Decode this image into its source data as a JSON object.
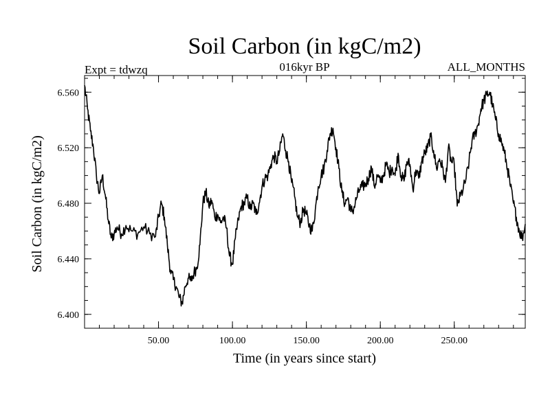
{
  "chart_data": {
    "type": "line",
    "title": "Soil Carbon (in kgC/m2)",
    "subtitle_left": "Expt = tdwzq",
    "subtitle_center": "016kyr BP",
    "subtitle_right": "ALL_MONTHS",
    "xlabel": "Time (in years since start)",
    "ylabel": "Soil Carbon (in kgC/m2)",
    "xlim": [
      0,
      298
    ],
    "ylim": [
      6.39,
      6.572
    ],
    "x_ticks": [
      50,
      100,
      150,
      200,
      250
    ],
    "x_tick_labels": [
      "50.00",
      "100.00",
      "150.00",
      "200.00",
      "250.00"
    ],
    "y_ticks": [
      6.4,
      6.44,
      6.48,
      6.52,
      6.56
    ],
    "y_tick_labels": [
      "6.400",
      "6.440",
      "6.480",
      "6.520",
      "6.560"
    ],
    "grid": false,
    "series": [
      {
        "name": "Soil Carbon",
        "color": "#000000",
        "points": [
          [
            0,
            6.565
          ],
          [
            2,
            6.548
          ],
          [
            4,
            6.532
          ],
          [
            6,
            6.52
          ],
          [
            8,
            6.5
          ],
          [
            10,
            6.487
          ],
          [
            12,
            6.5
          ],
          [
            14,
            6.486
          ],
          [
            16,
            6.468
          ],
          [
            18,
            6.455
          ],
          [
            20,
            6.458
          ],
          [
            22,
            6.463
          ],
          [
            25,
            6.458
          ],
          [
            28,
            6.464
          ],
          [
            32,
            6.46
          ],
          [
            36,
            6.458
          ],
          [
            40,
            6.463
          ],
          [
            44,
            6.458
          ],
          [
            48,
            6.456
          ],
          [
            50,
            6.47
          ],
          [
            52,
            6.48
          ],
          [
            54,
            6.47
          ],
          [
            56,
            6.45
          ],
          [
            58,
            6.432
          ],
          [
            60,
            6.425
          ],
          [
            62,
            6.42
          ],
          [
            64,
            6.412
          ],
          [
            66,
            6.408
          ],
          [
            68,
            6.42
          ],
          [
            70,
            6.426
          ],
          [
            72,
            6.424
          ],
          [
            74,
            6.43
          ],
          [
            76,
            6.434
          ],
          [
            78,
            6.45
          ],
          [
            80,
            6.48
          ],
          [
            82,
            6.488
          ],
          [
            84,
            6.478
          ],
          [
            86,
            6.482
          ],
          [
            88,
            6.47
          ],
          [
            90,
            6.472
          ],
          [
            92,
            6.466
          ],
          [
            94,
            6.47
          ],
          [
            96,
            6.462
          ],
          [
            98,
            6.442
          ],
          [
            100,
            6.436
          ],
          [
            102,
            6.455
          ],
          [
            104,
            6.468
          ],
          [
            106,
            6.478
          ],
          [
            108,
            6.48
          ],
          [
            110,
            6.484
          ],
          [
            112,
            6.476
          ],
          [
            114,
            6.48
          ],
          [
            116,
            6.472
          ],
          [
            118,
            6.48
          ],
          [
            120,
            6.492
          ],
          [
            122,
            6.498
          ],
          [
            124,
            6.5
          ],
          [
            126,
            6.508
          ],
          [
            128,
            6.514
          ],
          [
            130,
            6.51
          ],
          [
            132,
            6.518
          ],
          [
            134,
            6.53
          ],
          [
            136,
            6.518
          ],
          [
            138,
            6.51
          ],
          [
            140,
            6.495
          ],
          [
            142,
            6.485
          ],
          [
            144,
            6.47
          ],
          [
            146,
            6.466
          ],
          [
            148,
            6.476
          ],
          [
            150,
            6.472
          ],
          [
            152,
            6.464
          ],
          [
            154,
            6.46
          ],
          [
            156,
            6.475
          ],
          [
            158,
            6.492
          ],
          [
            160,
            6.5
          ],
          [
            162,
            6.506
          ],
          [
            164,
            6.518
          ],
          [
            166,
            6.53
          ],
          [
            168,
            6.534
          ],
          [
            170,
            6.52
          ],
          [
            172,
            6.505
          ],
          [
            174,
            6.488
          ],
          [
            176,
            6.48
          ],
          [
            178,
            6.484
          ],
          [
            180,
            6.474
          ],
          [
            182,
            6.476
          ],
          [
            184,
            6.484
          ],
          [
            186,
            6.49
          ],
          [
            188,
            6.492
          ],
          [
            190,
            6.494
          ],
          [
            192,
            6.498
          ],
          [
            194,
            6.506
          ],
          [
            196,
            6.492
          ],
          [
            198,
            6.5
          ],
          [
            200,
            6.495
          ],
          [
            202,
            6.5
          ],
          [
            204,
            6.508
          ],
          [
            206,
            6.502
          ],
          [
            208,
            6.506
          ],
          [
            210,
            6.5
          ],
          [
            212,
            6.516
          ],
          [
            214,
            6.5
          ],
          [
            216,
            6.496
          ],
          [
            218,
            6.51
          ],
          [
            220,
            6.508
          ],
          [
            222,
            6.49
          ],
          [
            224,
            6.504
          ],
          [
            226,
            6.498
          ],
          [
            228,
            6.51
          ],
          [
            230,
            6.516
          ],
          [
            232,
            6.52
          ],
          [
            234,
            6.528
          ],
          [
            236,
            6.518
          ],
          [
            238,
            6.505
          ],
          [
            240,
            6.512
          ],
          [
            242,
            6.506
          ],
          [
            244,
            6.495
          ],
          [
            246,
            6.52
          ],
          [
            248,
            6.51
          ],
          [
            250,
            6.508
          ],
          [
            252,
            6.478
          ],
          [
            254,
            6.485
          ],
          [
            256,
            6.49
          ],
          [
            258,
            6.498
          ],
          [
            260,
            6.51
          ],
          [
            262,
            6.525
          ],
          [
            264,
            6.53
          ],
          [
            266,
            6.536
          ],
          [
            268,
            6.548
          ],
          [
            270,
            6.554
          ],
          [
            272,
            6.558
          ],
          [
            274,
            6.56
          ],
          [
            276,
            6.55
          ],
          [
            278,
            6.54
          ],
          [
            280,
            6.53
          ],
          [
            282,
            6.524
          ],
          [
            284,
            6.516
          ],
          [
            286,
            6.505
          ],
          [
            288,
            6.492
          ],
          [
            290,
            6.48
          ],
          [
            292,
            6.47
          ],
          [
            294,
            6.46
          ],
          [
            296,
            6.455
          ],
          [
            298,
            6.465
          ]
        ]
      }
    ]
  }
}
